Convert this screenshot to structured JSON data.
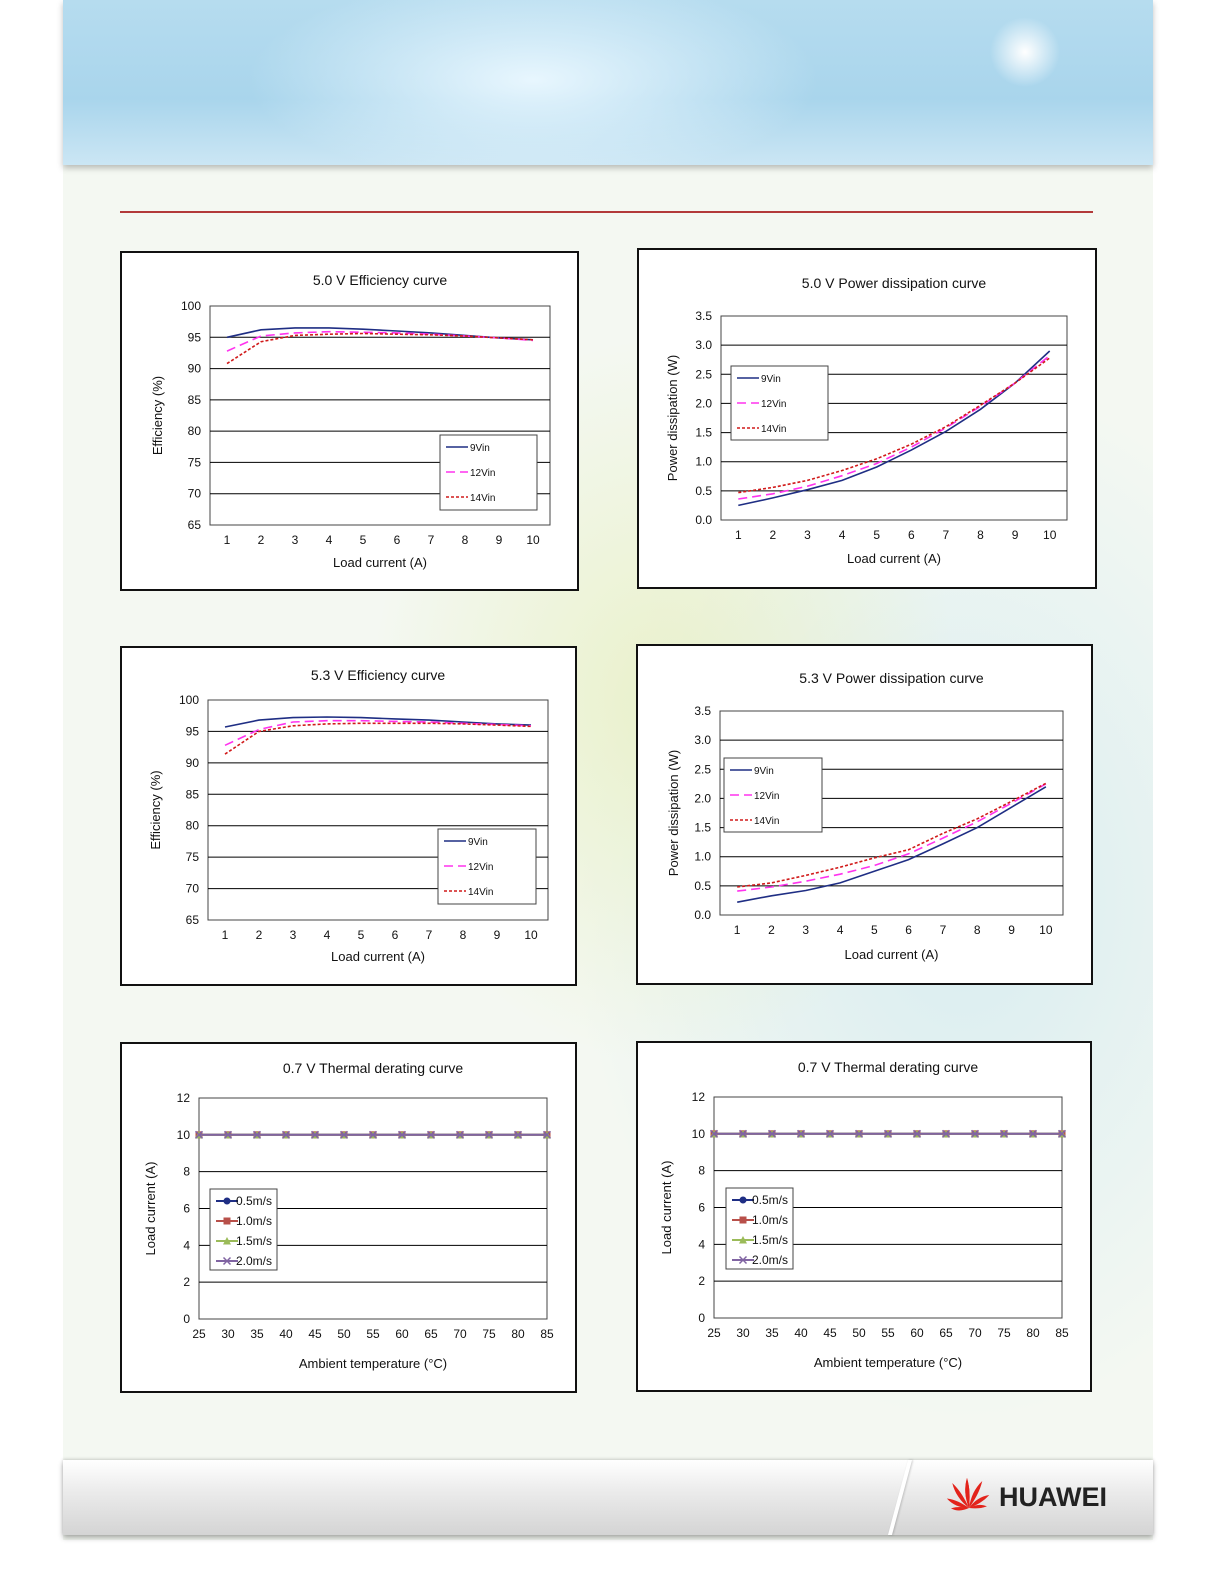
{
  "brand": {
    "name": "HUAWEI"
  },
  "colors": {
    "rule": "#b23a3a",
    "s9": "#1f2e84",
    "s12": "#ff33ee",
    "s14": "#d11a1a",
    "t05": "#1f2e84",
    "t10": "#b8504a",
    "t15": "#9bbb59",
    "t20": "#8064a2"
  },
  "chart_data": [
    {
      "id": "eff50",
      "type": "line",
      "title": "5.0 V Efficiency curve",
      "xlabel": "Load current (A)",
      "ylabel": "Efficiency (%)",
      "xcategories": [
        "1",
        "2",
        "3",
        "4",
        "5",
        "6",
        "7",
        "8",
        "9",
        "10"
      ],
      "ylim": [
        65,
        100
      ],
      "yticks": [
        65,
        70,
        75,
        80,
        85,
        90,
        95,
        100
      ],
      "grid": true,
      "legend_position": "bottom-right",
      "series": [
        {
          "name": "9Vin",
          "style": "solid",
          "values": [
            95.0,
            96.2,
            96.5,
            96.5,
            96.3,
            96.0,
            95.7,
            95.3,
            94.9,
            94.6
          ]
        },
        {
          "name": "12Vin",
          "style": "dashed",
          "values": [
            92.8,
            95.2,
            95.7,
            95.9,
            95.8,
            95.7,
            95.5,
            95.2,
            94.9,
            94.5
          ]
        },
        {
          "name": "14Vin",
          "style": "dotted",
          "values": [
            90.8,
            94.3,
            95.3,
            95.5,
            95.6,
            95.5,
            95.4,
            95.2,
            94.9,
            94.6
          ]
        }
      ]
    },
    {
      "id": "pd50",
      "type": "line",
      "title": "5.0 V Power dissipation curve",
      "xlabel": "Load current (A)",
      "ylabel": "Power dissipation (W)",
      "xcategories": [
        "1",
        "2",
        "3",
        "4",
        "5",
        "6",
        "7",
        "8",
        "9",
        "10"
      ],
      "ylim": [
        0,
        3.5
      ],
      "yticks": [
        "0.0",
        "0.5",
        "1.0",
        "1.5",
        "2.0",
        "2.5",
        "3.0",
        "3.5"
      ],
      "grid": true,
      "legend_position": "top-left",
      "series": [
        {
          "name": "9Vin",
          "style": "solid",
          "values": [
            0.25,
            0.38,
            0.52,
            0.68,
            0.91,
            1.2,
            1.52,
            1.9,
            2.35,
            2.9
          ]
        },
        {
          "name": "12Vin",
          "style": "dashed",
          "values": [
            0.36,
            0.45,
            0.58,
            0.76,
            0.97,
            1.25,
            1.58,
            1.95,
            2.35,
            2.82
          ]
        },
        {
          "name": "14Vin",
          "style": "dotted",
          "values": [
            0.47,
            0.56,
            0.68,
            0.85,
            1.05,
            1.3,
            1.6,
            1.97,
            2.35,
            2.78
          ]
        }
      ]
    },
    {
      "id": "eff53",
      "type": "line",
      "title": "5.3 V Efficiency curve",
      "xlabel": "Load current (A)",
      "ylabel": "Efficiency (%)",
      "xcategories": [
        "1",
        "2",
        "3",
        "4",
        "5",
        "6",
        "7",
        "8",
        "9",
        "10"
      ],
      "ylim": [
        65,
        100
      ],
      "yticks": [
        65,
        70,
        75,
        80,
        85,
        90,
        95,
        100
      ],
      "grid": true,
      "legend_position": "bottom-right",
      "series": [
        {
          "name": "9Vin",
          "style": "solid",
          "values": [
            95.7,
            96.8,
            97.2,
            97.3,
            97.2,
            97.0,
            96.8,
            96.5,
            96.2,
            96.0
          ]
        },
        {
          "name": "12Vin",
          "style": "dashed",
          "values": [
            92.8,
            95.3,
            96.5,
            96.7,
            96.7,
            96.6,
            96.5,
            96.3,
            96.1,
            95.9
          ]
        },
        {
          "name": "14Vin",
          "style": "dotted",
          "values": [
            91.4,
            95.0,
            95.9,
            96.2,
            96.3,
            96.3,
            96.3,
            96.2,
            96.0,
            95.8
          ]
        }
      ]
    },
    {
      "id": "pd53",
      "type": "line",
      "title": "5.3 V Power dissipation curve",
      "xlabel": "Load current (A)",
      "ylabel": "Power dissipation (W)",
      "xcategories": [
        "1",
        "2",
        "3",
        "4",
        "5",
        "6",
        "7",
        "8",
        "9",
        "10"
      ],
      "ylim": [
        0,
        3.5
      ],
      "yticks": [
        "0.0",
        "0.5",
        "1.0",
        "1.5",
        "2.0",
        "2.5",
        "3.0",
        "3.5"
      ],
      "grid": true,
      "legend_position": "middle-left",
      "series": [
        {
          "name": "9Vin",
          "style": "solid",
          "values": [
            0.22,
            0.33,
            0.42,
            0.55,
            0.75,
            0.95,
            1.22,
            1.5,
            1.85,
            2.2
          ]
        },
        {
          "name": "12Vin",
          "style": "dashed",
          "values": [
            0.41,
            0.48,
            0.58,
            0.7,
            0.85,
            1.05,
            1.32,
            1.6,
            1.92,
            2.25
          ]
        },
        {
          "name": "14Vin",
          "style": "dotted",
          "values": [
            0.48,
            0.55,
            0.68,
            0.82,
            0.98,
            1.12,
            1.4,
            1.65,
            1.95,
            2.26
          ]
        }
      ]
    },
    {
      "id": "td07a",
      "type": "line",
      "title": "0.7 V Thermal derating curve",
      "xlabel": "Ambient temperature (°C)",
      "ylabel": "Load current (A)",
      "xcategories": [
        "25",
        "30",
        "35",
        "40",
        "45",
        "50",
        "55",
        "60",
        "65",
        "70",
        "75",
        "80",
        "85"
      ],
      "ylim": [
        0,
        12
      ],
      "yticks": [
        0,
        2,
        4,
        6,
        8,
        10,
        12
      ],
      "grid": true,
      "legend_position": "lower-left",
      "series": [
        {
          "name": "0.5m/s",
          "marker": "circle",
          "values": [
            10,
            10,
            10,
            10,
            10,
            10,
            10,
            10,
            10,
            10,
            10,
            10,
            10
          ]
        },
        {
          "name": "1.0m/s",
          "marker": "square",
          "values": [
            10,
            10,
            10,
            10,
            10,
            10,
            10,
            10,
            10,
            10,
            10,
            10,
            10
          ]
        },
        {
          "name": "1.5m/s",
          "marker": "triangle",
          "values": [
            10,
            10,
            10,
            10,
            10,
            10,
            10,
            10,
            10,
            10,
            10,
            10,
            10
          ]
        },
        {
          "name": "2.0m/s",
          "marker": "x",
          "values": [
            10,
            10,
            10,
            10,
            10,
            10,
            10,
            10,
            10,
            10,
            10,
            10,
            10
          ]
        }
      ]
    },
    {
      "id": "td07b",
      "type": "line",
      "title": "0.7 V Thermal derating curve",
      "xlabel": "Ambient temperature (°C)",
      "ylabel": "Load current (A)",
      "xcategories": [
        "25",
        "30",
        "35",
        "40",
        "45",
        "50",
        "55",
        "60",
        "65",
        "70",
        "75",
        "80",
        "85"
      ],
      "ylim": [
        0,
        12
      ],
      "yticks": [
        0,
        2,
        4,
        6,
        8,
        10,
        12
      ],
      "grid": true,
      "legend_position": "lower-left",
      "series": [
        {
          "name": "0.5m/s",
          "marker": "circle",
          "values": [
            10,
            10,
            10,
            10,
            10,
            10,
            10,
            10,
            10,
            10,
            10,
            10,
            10
          ]
        },
        {
          "name": "1.0m/s",
          "marker": "square",
          "values": [
            10,
            10,
            10,
            10,
            10,
            10,
            10,
            10,
            10,
            10,
            10,
            10,
            10
          ]
        },
        {
          "name": "1.5m/s",
          "marker": "triangle",
          "values": [
            10,
            10,
            10,
            10,
            10,
            10,
            10,
            10,
            10,
            10,
            10,
            10,
            10
          ]
        },
        {
          "name": "2.0m/s",
          "marker": "x",
          "values": [
            10,
            10,
            10,
            10,
            10,
            10,
            10,
            10,
            10,
            10,
            10,
            10,
            10
          ]
        }
      ]
    }
  ]
}
